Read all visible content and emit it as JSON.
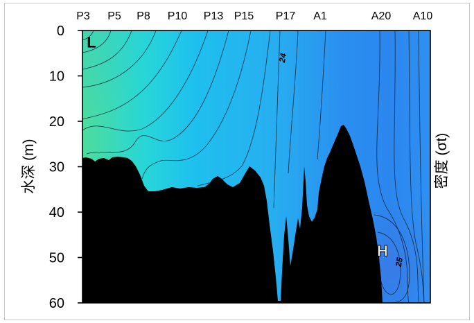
{
  "chart_data": {
    "type": "heatmap",
    "title": "",
    "xlabel": "",
    "ylabel": "水深 (m)",
    "right_label": "密度 (σt)",
    "stations": [
      "P3",
      "P5",
      "P8",
      "P10",
      "P13",
      "P15",
      "P17",
      "A1",
      "A20",
      "A10"
    ],
    "y_ticks": [
      0,
      10,
      20,
      30,
      40,
      50,
      60
    ],
    "ylim": [
      0,
      60
    ],
    "y_inverted": true,
    "contour_labels": [
      {
        "text": "24",
        "depth_m": 6
      },
      {
        "text": "25",
        "depth_m": 51
      }
    ],
    "markers": [
      {
        "text": "L",
        "station": "P3",
        "depth_m": 2.5
      },
      {
        "text": "H",
        "station": "A20",
        "depth_m": 48.5
      }
    ],
    "bottom_profile_depth_m": [
      {
        "station": "P3",
        "depth": 28.3
      },
      {
        "station": "P5",
        "depth": 28.5
      },
      {
        "station": "P8",
        "depth": 35.2
      },
      {
        "station": "P10",
        "depth": 35.4
      },
      {
        "station": "P13",
        "depth": 33.4
      },
      {
        "station": "P15",
        "depth": 31.3
      },
      {
        "station": "P17",
        "depth": 59.0
      },
      {
        "station": "A1",
        "depth": 39.5
      },
      {
        "station": "A20",
        "depth": 60.0
      },
      {
        "station": "A10",
        "depth": 60.0
      }
    ],
    "colors": {
      "low": "#4ddc9c",
      "mid": "#1ec0ee",
      "high": "#3a7ae6",
      "seabed": "#000000"
    },
    "grid": false
  }
}
